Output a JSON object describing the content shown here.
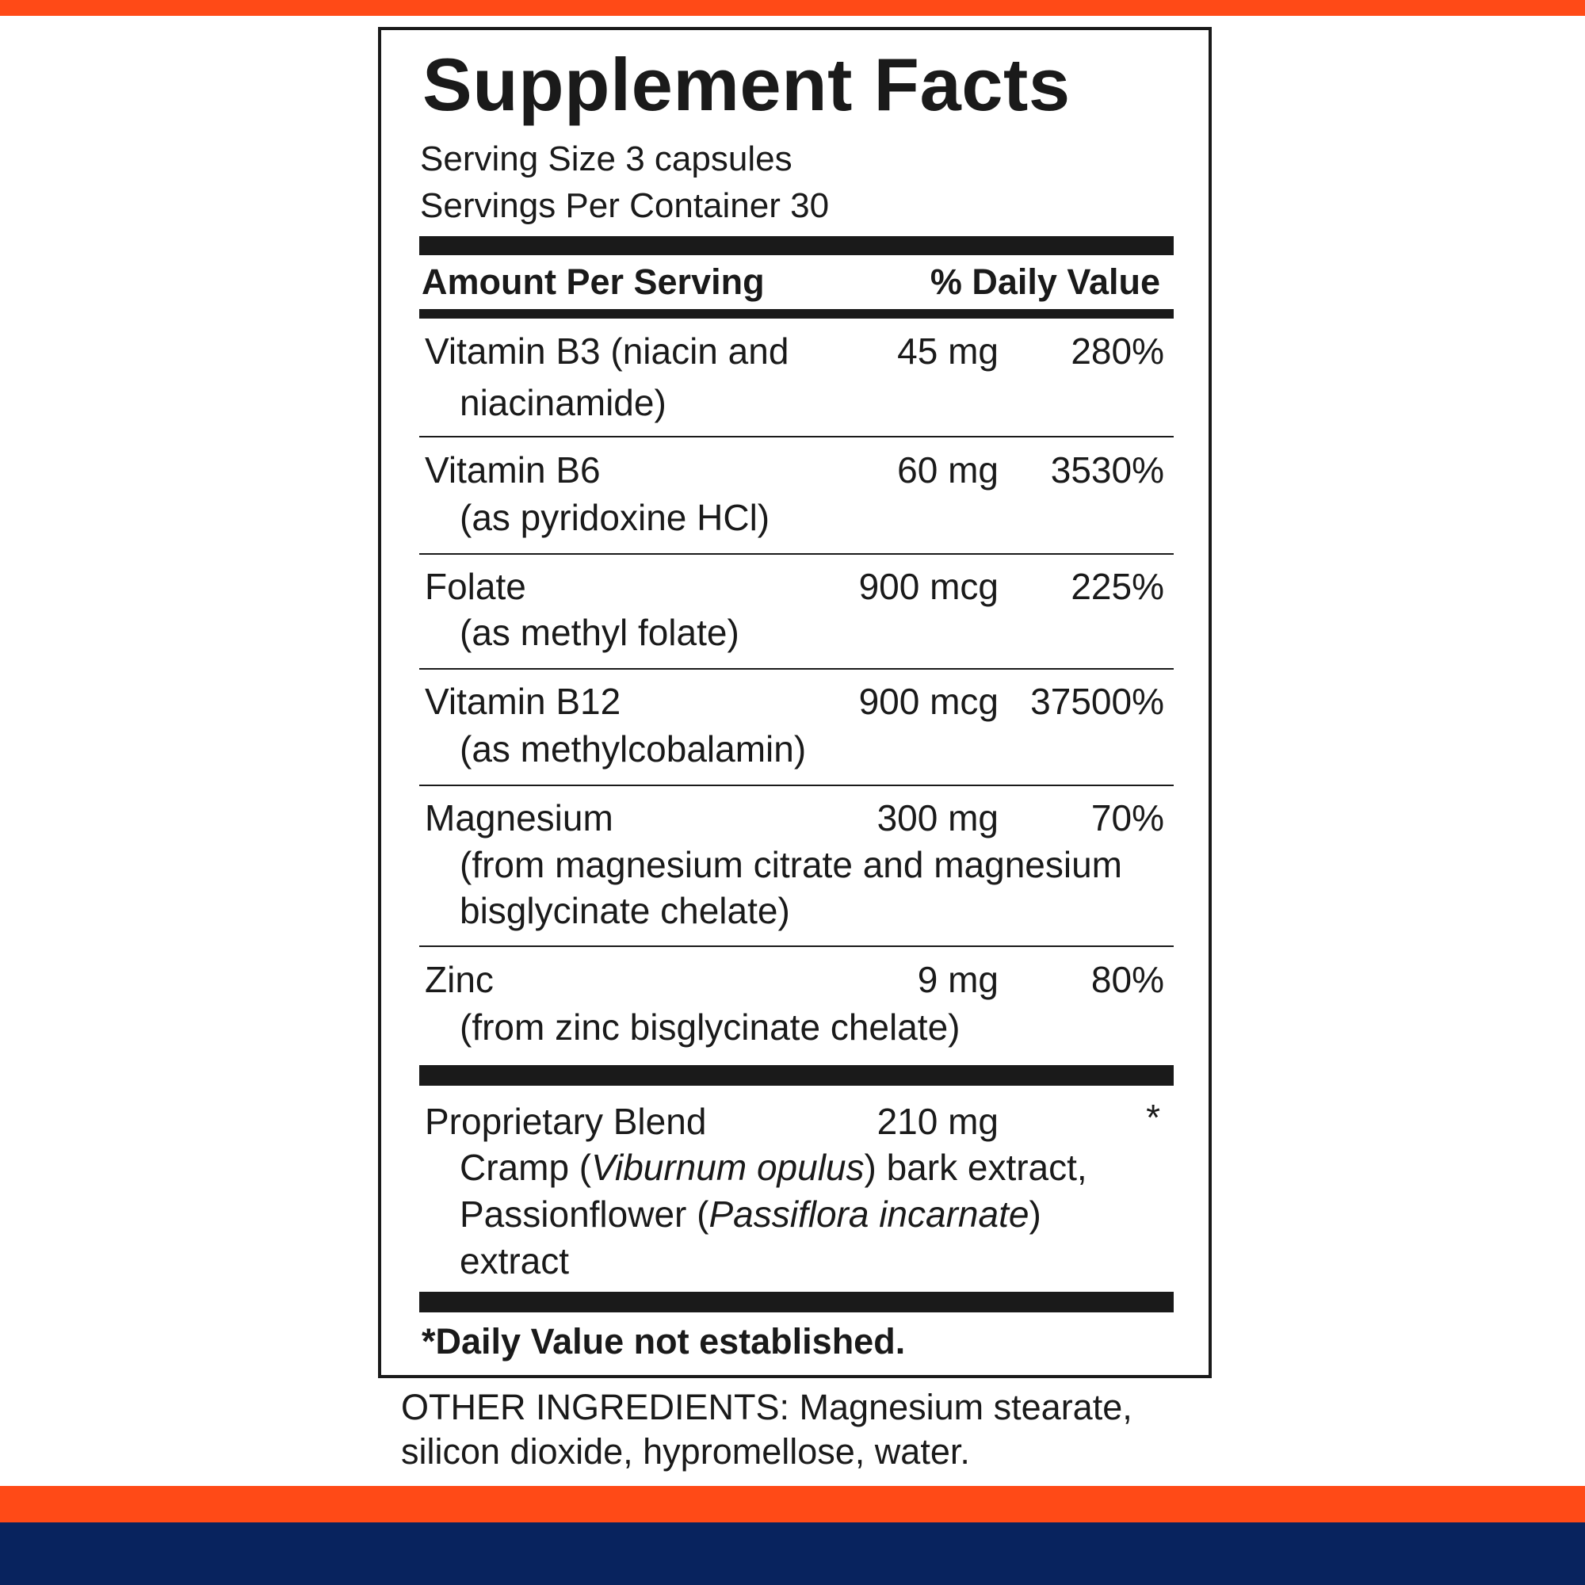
{
  "colors": {
    "accent_orange": "#FF4A17",
    "navy": "#08235E",
    "text": "#1a1a1a"
  },
  "title": "Supplement Facts",
  "serving_size": "Serving Size 3 capsules",
  "servings_per_container": "Servings Per Container 30",
  "header": {
    "amount": "Amount Per Serving",
    "daily_value": "% Daily Value"
  },
  "nutrients": [
    {
      "name": "Vitamin B3 (niacin and",
      "sub": [
        "niacinamide)"
      ],
      "amount": "45 mg",
      "dv": "280%"
    },
    {
      "name": "Vitamin B6",
      "sub": [
        "(as pyridoxine HCl)"
      ],
      "amount": "60 mg",
      "dv": "3530%"
    },
    {
      "name": "Folate",
      "sub": [
        "(as methyl folate)"
      ],
      "amount": "900 mcg",
      "dv": "225%"
    },
    {
      "name": "Vitamin B12",
      "sub": [
        "(as methylcobalamin)"
      ],
      "amount": "900 mcg",
      "dv": "37500%"
    },
    {
      "name": "Magnesium",
      "sub": [
        "(from magnesium citrate and magnesium",
        "bisglycinate chelate)"
      ],
      "amount": "300 mg",
      "dv": "70%"
    },
    {
      "name": "Zinc",
      "sub": [
        "(from zinc bisglycinate chelate)"
      ],
      "amount": "9 mg",
      "dv": "80%"
    }
  ],
  "blend": {
    "name": "Proprietary Blend",
    "amount": "210 mg",
    "dv": "*",
    "line1": {
      "a": "Cramp (",
      "italic": "Viburnum opulus",
      "b": ") bark extract,"
    },
    "line2": {
      "a": "Passionflower (",
      "italic": "Passiflora incarnate",
      "b": ")"
    },
    "line3": "extract"
  },
  "footnote": "*Daily Value not established.",
  "other_ingredients": [
    "OTHER INGREDIENTS: Magnesium stearate,",
    "silicon dioxide, hypromellose, water."
  ]
}
